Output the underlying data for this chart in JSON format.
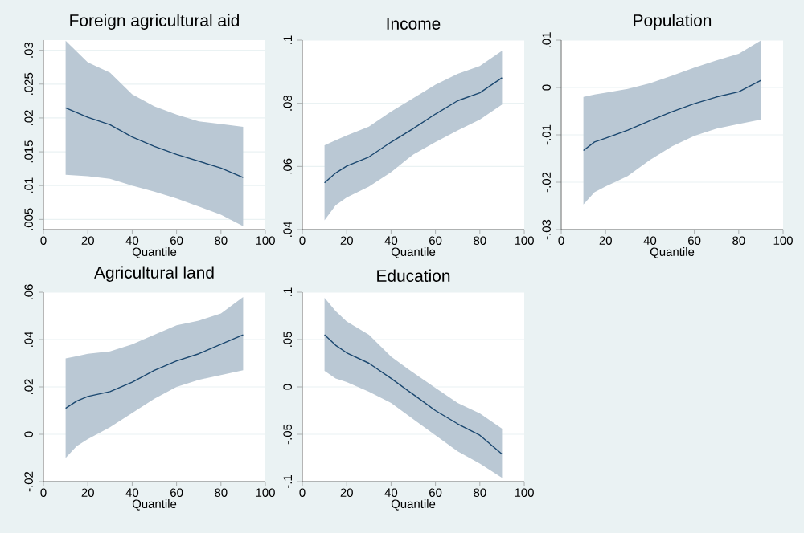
{
  "chart_data": [
    {
      "type": "line",
      "title": "Foreign agricultural aid",
      "xlabel": "Quantile",
      "xlim": [
        0,
        100
      ],
      "xticks": [
        0,
        20,
        40,
        60,
        80,
        100
      ],
      "ylim": [
        0.0035,
        0.0315
      ],
      "yticks": [
        {
          "value": 0.005,
          "label": ".005"
        },
        {
          "value": 0.01,
          "label": ".01"
        },
        {
          "value": 0.015,
          "label": ".015"
        },
        {
          "value": 0.02,
          "label": ".02"
        },
        {
          "value": 0.025,
          "label": ".025"
        },
        {
          "value": 0.03,
          "label": ".03"
        }
      ],
      "grid": "y",
      "series": [
        {
          "color": "#1a476f",
          "x": [
            10,
            20,
            30,
            40,
            50,
            60,
            70,
            80,
            90
          ],
          "values": [
            0.0215,
            0.0201,
            0.019,
            0.0172,
            0.0158,
            0.0146,
            0.0136,
            0.0126,
            0.0112
          ],
          "upper": [
            0.0314,
            0.0282,
            0.0267,
            0.0235,
            0.0217,
            0.0205,
            0.0195,
            0.0191,
            0.0187
          ],
          "lower": [
            0.0116,
            0.0114,
            0.011,
            0.01,
            0.0091,
            0.0081,
            0.0069,
            0.0057,
            0.004
          ]
        }
      ]
    },
    {
      "type": "line",
      "title": "Income",
      "xlabel": "Quantile",
      "xlim": [
        0,
        100
      ],
      "xticks": [
        0,
        20,
        40,
        60,
        80,
        100
      ],
      "ylim": [
        0.04,
        0.1
      ],
      "yticks": [
        {
          "value": 0.04,
          "label": ".04"
        },
        {
          "value": 0.06,
          "label": ".06"
        },
        {
          "value": 0.08,
          "label": ".08"
        },
        {
          "value": 0.1,
          "label": ".1"
        }
      ],
      "grid": "y",
      "series": [
        {
          "color": "#1a476f",
          "x": [
            10,
            15,
            20,
            30,
            40,
            50,
            60,
            70,
            80,
            90
          ],
          "values": [
            0.0548,
            0.0579,
            0.0601,
            0.063,
            0.0677,
            0.072,
            0.0766,
            0.0808,
            0.0833,
            0.0881
          ],
          "upper": [
            0.0667,
            0.0683,
            0.0698,
            0.0726,
            0.0774,
            0.0816,
            0.0859,
            0.0893,
            0.0918,
            0.0966
          ],
          "lower": [
            0.0429,
            0.0477,
            0.0502,
            0.0536,
            0.0582,
            0.0638,
            0.0677,
            0.0714,
            0.0748,
            0.0796
          ]
        }
      ]
    },
    {
      "type": "line",
      "title": "Population",
      "xlabel": "Quantile",
      "xlim": [
        0,
        100
      ],
      "xticks": [
        0,
        20,
        40,
        60,
        80,
        100
      ],
      "ylim": [
        -0.03,
        0.01
      ],
      "yticks": [
        {
          "value": -0.03,
          "label": "-.03"
        },
        {
          "value": -0.02,
          "label": "-.02"
        },
        {
          "value": -0.01,
          "label": "-.01"
        },
        0,
        {
          "value": 0.01,
          "label": ".01"
        }
      ],
      "grid": "y",
      "series": [
        {
          "color": "#1a476f",
          "x": [
            10,
            15,
            20,
            30,
            40,
            50,
            60,
            70,
            80,
            90
          ],
          "values": [
            -0.0133,
            -0.0115,
            -0.0107,
            -0.009,
            -0.007,
            -0.0051,
            -0.0034,
            -0.002,
            -0.0009,
            0.0015
          ],
          "upper": [
            -0.002,
            -0.0015,
            -0.0011,
            -0.0003,
            0.0009,
            0.0025,
            0.0042,
            0.0057,
            0.0071,
            0.0099
          ],
          "lower": [
            -0.0247,
            -0.0221,
            -0.0209,
            -0.0187,
            -0.0153,
            -0.0124,
            -0.0102,
            -0.0087,
            -0.0077,
            -0.0068
          ]
        }
      ]
    },
    {
      "type": "line",
      "title": "Agricultural land",
      "xlabel": "Quantile",
      "xlim": [
        0,
        100
      ],
      "xticks": [
        0,
        20,
        40,
        60,
        80,
        100
      ],
      "ylim": [
        -0.02,
        0.06
      ],
      "yticks": [
        {
          "value": -0.02,
          "label": "-.02"
        },
        0,
        {
          "value": 0.02,
          "label": ".02"
        },
        {
          "value": 0.04,
          "label": ".04"
        },
        {
          "value": 0.06,
          "label": ".06"
        }
      ],
      "grid": "y",
      "series": [
        {
          "color": "#1a476f",
          "x": [
            10,
            15,
            20,
            30,
            40,
            50,
            60,
            70,
            80,
            90
          ],
          "values": [
            0.011,
            0.014,
            0.016,
            0.018,
            0.022,
            0.027,
            0.031,
            0.034,
            0.038,
            0.042
          ],
          "upper": [
            0.032,
            0.033,
            0.034,
            0.035,
            0.038,
            0.042,
            0.046,
            0.048,
            0.051,
            0.058
          ],
          "lower": [
            -0.01,
            -0.005,
            -0.002,
            0.003,
            0.009,
            0.015,
            0.02,
            0.023,
            0.025,
            0.027
          ]
        }
      ]
    },
    {
      "type": "line",
      "title": "Education",
      "xlabel": "Quantile",
      "xlim": [
        0,
        100
      ],
      "xticks": [
        0,
        20,
        40,
        60,
        80,
        100
      ],
      "ylim": [
        -0.1,
        0.1
      ],
      "yticks": [
        {
          "value": -0.1,
          "label": "-.1"
        },
        {
          "value": -0.05,
          "label": "-.05"
        },
        0,
        {
          "value": 0.05,
          "label": ".05"
        },
        {
          "value": 0.1,
          "label": ".1"
        }
      ],
      "grid": "y",
      "series": [
        {
          "color": "#1a476f",
          "x": [
            10,
            15,
            20,
            30,
            40,
            50,
            60,
            70,
            80,
            90
          ],
          "values": [
            0.055,
            0.044,
            0.036,
            0.025,
            0.009,
            -0.008,
            -0.025,
            -0.039,
            -0.051,
            -0.071
          ],
          "upper": [
            0.094,
            0.08,
            0.069,
            0.055,
            0.032,
            0.015,
            -0.001,
            -0.017,
            -0.028,
            -0.044
          ],
          "lower": [
            0.017,
            0.009,
            0.005,
            -0.005,
            -0.017,
            -0.034,
            -0.051,
            -0.068,
            -0.081,
            -0.096
          ]
        }
      ]
    }
  ]
}
